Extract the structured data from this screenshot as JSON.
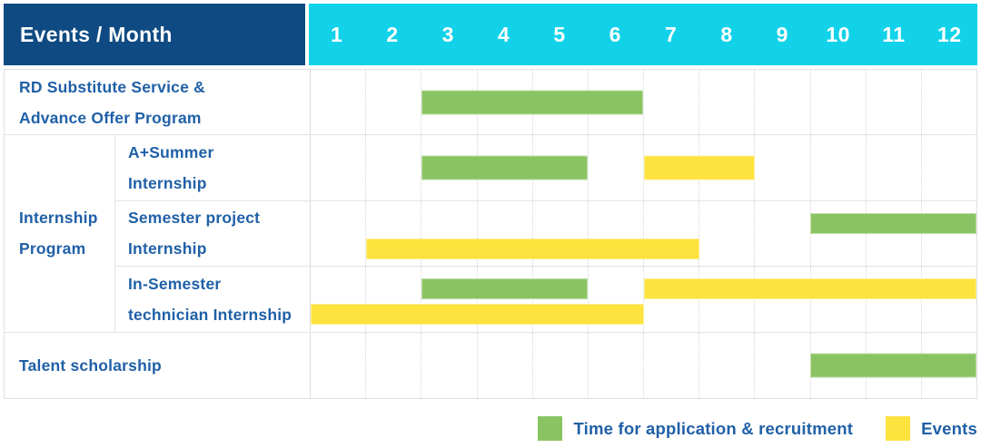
{
  "colors": {
    "header_bg": "#0F4B82",
    "months_bg": "#12D2E9",
    "label_text": "#2060A7",
    "green": "#8AC462",
    "yellow": "#FEE23E",
    "grid": "#D8D8D8",
    "divider": "#DCDCDC",
    "rowline": "#E3E3E3",
    "outer": "#E0E0E0"
  },
  "header": {
    "title": "Events / Month",
    "months": [
      "1",
      "2",
      "3",
      "4",
      "5",
      "6",
      "7",
      "8",
      "9",
      "10",
      "11",
      "12"
    ]
  },
  "group": {
    "id": "internship-program",
    "label_lines": [
      "Internship",
      "Program"
    ],
    "row_start": 2,
    "row_end": 4
  },
  "rows": [
    {
      "id": "rd-substitute-advance-offer",
      "label_lines": [
        "RD Substitute Service &",
        "Advance Offer Program"
      ],
      "in_group": false,
      "bars": [
        {
          "color": "green",
          "start": 3,
          "end": 6,
          "line": "center"
        }
      ]
    },
    {
      "id": "a-plus-summer-internship",
      "label_lines": [
        "A+Summer",
        "Internship"
      ],
      "in_group": true,
      "bars": [
        {
          "color": "green",
          "start": 3,
          "end": 5,
          "line": "center"
        },
        {
          "color": "yellow",
          "start": 7,
          "end": 8,
          "line": "center"
        }
      ]
    },
    {
      "id": "semester-project-internship",
      "label_lines": [
        "Semester project",
        "Internship"
      ],
      "in_group": true,
      "bars": [
        {
          "color": "green",
          "start": 10,
          "end": 12,
          "line": "top"
        },
        {
          "color": "yellow",
          "start": 2,
          "end": 7,
          "line": "bottom"
        }
      ]
    },
    {
      "id": "in-semester-technician-internship",
      "label_lines": [
        "In-Semester",
        "technician Internship"
      ],
      "in_group": true,
      "bars": [
        {
          "color": "green",
          "start": 3,
          "end": 5,
          "line": "top"
        },
        {
          "color": "yellow",
          "start": 7,
          "end": 12,
          "line": "top"
        },
        {
          "color": "yellow",
          "start": 1,
          "end": 6,
          "line": "bottom"
        }
      ]
    },
    {
      "id": "talent-scholarship",
      "label_lines": [
        "Talent scholarship"
      ],
      "in_group": false,
      "bars": [
        {
          "color": "green",
          "start": 10,
          "end": 12,
          "line": "center"
        }
      ]
    }
  ],
  "legend": {
    "items": [
      {
        "id": "application-recruitment",
        "label": "Time for application & recruitment",
        "color": "#8AC462"
      },
      {
        "id": "events",
        "label": "Events",
        "color": "#FEE23E"
      }
    ]
  },
  "chart_data": {
    "type": "bar",
    "subtype": "gantt",
    "orientation": "horizontal",
    "title": "Events / Month",
    "xlabel": "Month",
    "x_ticks": [
      1,
      2,
      3,
      4,
      5,
      6,
      7,
      8,
      9,
      10,
      11,
      12
    ],
    "x_range": [
      1,
      12
    ],
    "grid": true,
    "legend_position": "bottom-right",
    "legend": [
      "Time for application & recruitment",
      "Events"
    ],
    "series_colors": {
      "Time for application & recruitment": "#8AC462",
      "Events": "#FEE23E"
    },
    "rows": [
      {
        "category": "RD Substitute Service & Advance Offer Program",
        "group": null,
        "spans": [
          {
            "series": "Time for application & recruitment",
            "start_month": 3,
            "end_month": 6
          }
        ]
      },
      {
        "category": "A+Summer Internship",
        "group": "Internship Program",
        "spans": [
          {
            "series": "Time for application & recruitment",
            "start_month": 3,
            "end_month": 5
          },
          {
            "series": "Events",
            "start_month": 7,
            "end_month": 8
          }
        ]
      },
      {
        "category": "Semester project Internship",
        "group": "Internship Program",
        "spans": [
          {
            "series": "Time for application & recruitment",
            "start_month": 10,
            "end_month": 12
          },
          {
            "series": "Events",
            "start_month": 2,
            "end_month": 7
          }
        ]
      },
      {
        "category": "In-Semester technician Internship",
        "group": "Internship Program",
        "spans": [
          {
            "series": "Time for application & recruitment",
            "start_month": 3,
            "end_month": 5
          },
          {
            "series": "Events",
            "start_month": 7,
            "end_month": 12
          },
          {
            "series": "Events",
            "start_month": 1,
            "end_month": 6
          }
        ]
      },
      {
        "category": "Talent scholarship",
        "group": null,
        "spans": [
          {
            "series": "Time for application & recruitment",
            "start_month": 10,
            "end_month": 12
          }
        ]
      }
    ]
  }
}
